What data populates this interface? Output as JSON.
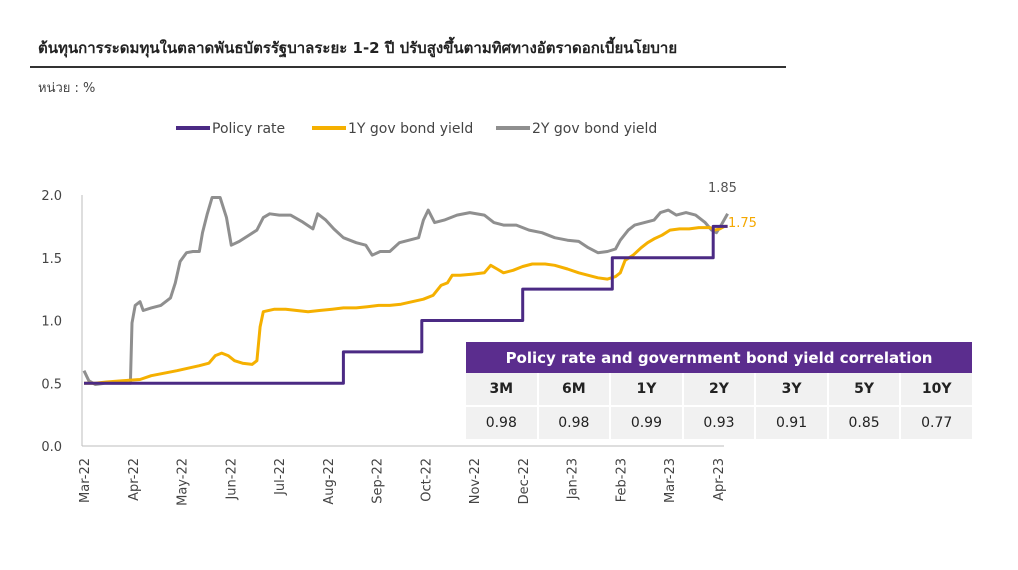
{
  "page": {
    "title": "ต้นทุนการระดมทุนในตลาดพันธบัตรรัฐบาลระยะ 1-2 ปี ปรับสูงขึ้นตามทิศทางอัตราดอกเบี้ยนโยบาย",
    "unit": "หน่วย : %"
  },
  "colors": {
    "policy": "#4b2a84",
    "y1": "#f5b000",
    "y2": "#8f8f8f",
    "table_header": "#5b2d8e",
    "table_cell": "#f1f1f1"
  },
  "chart_data": {
    "type": "line",
    "title": "",
    "x_labels": [
      "Mar-22",
      "Apr-22",
      "May-22",
      "Jun-22",
      "Jul-22",
      "Aug-22",
      "Sep-22",
      "Oct-22",
      "Nov-22",
      "Dec-22",
      "Jan-23",
      "Feb-23",
      "Mar-23",
      "Apr-23"
    ],
    "ylim": [
      0,
      2.0
    ],
    "y_ticks": [
      "0.0",
      "0.5",
      "1.0",
      "1.5",
      "2.0"
    ],
    "grid": false,
    "legend_position": "top",
    "series": [
      {
        "name": "Policy rate",
        "color": "#4b2a84",
        "points": [
          [
            "2022-03-01",
            0.5
          ],
          [
            "2022-08-10",
            0.5
          ],
          [
            "2022-08-10",
            0.75
          ],
          [
            "2022-09-28",
            0.75
          ],
          [
            "2022-09-28",
            1.0
          ],
          [
            "2022-11-30",
            1.0
          ],
          [
            "2022-11-30",
            1.25
          ],
          [
            "2023-01-25",
            1.25
          ],
          [
            "2023-01-25",
            1.5
          ],
          [
            "2023-03-29",
            1.5
          ],
          [
            "2023-03-29",
            1.75
          ],
          [
            "2023-04-07",
            1.75
          ]
        ]
      },
      {
        "name": "1Y gov bond yield",
        "color": "#f5b000",
        "points": [
          [
            "2022-03-01",
            0.5
          ],
          [
            "2022-03-08",
            0.5
          ],
          [
            "2022-03-15",
            0.51
          ],
          [
            "2022-03-25",
            0.52
          ],
          [
            "2022-04-05",
            0.53
          ],
          [
            "2022-04-12",
            0.56
          ],
          [
            "2022-04-20",
            0.58
          ],
          [
            "2022-04-28",
            0.6
          ],
          [
            "2022-05-05",
            0.62
          ],
          [
            "2022-05-12",
            0.64
          ],
          [
            "2022-05-18",
            0.66
          ],
          [
            "2022-05-22",
            0.72
          ],
          [
            "2022-05-26",
            0.74
          ],
          [
            "2022-05-30",
            0.72
          ],
          [
            "2022-06-03",
            0.68
          ],
          [
            "2022-06-08",
            0.66
          ],
          [
            "2022-06-14",
            0.65
          ],
          [
            "2022-06-17",
            0.68
          ],
          [
            "2022-06-19",
            0.95
          ],
          [
            "2022-06-21",
            1.07
          ],
          [
            "2022-06-28",
            1.09
          ],
          [
            "2022-07-05",
            1.09
          ],
          [
            "2022-07-12",
            1.08
          ],
          [
            "2022-07-19",
            1.07
          ],
          [
            "2022-07-26",
            1.08
          ],
          [
            "2022-08-03",
            1.09
          ],
          [
            "2022-08-10",
            1.1
          ],
          [
            "2022-08-18",
            1.1
          ],
          [
            "2022-08-25",
            1.11
          ],
          [
            "2022-09-01",
            1.12
          ],
          [
            "2022-09-08",
            1.12
          ],
          [
            "2022-09-15",
            1.13
          ],
          [
            "2022-09-22",
            1.15
          ],
          [
            "2022-09-29",
            1.17
          ],
          [
            "2022-10-05",
            1.2
          ],
          [
            "2022-10-10",
            1.28
          ],
          [
            "2022-10-14",
            1.3
          ],
          [
            "2022-10-17",
            1.36
          ],
          [
            "2022-10-22",
            1.36
          ],
          [
            "2022-10-30",
            1.37
          ],
          [
            "2022-11-06",
            1.38
          ],
          [
            "2022-11-10",
            1.44
          ],
          [
            "2022-11-14",
            1.41
          ],
          [
            "2022-11-18",
            1.38
          ],
          [
            "2022-11-24",
            1.4
          ],
          [
            "2022-11-30",
            1.43
          ],
          [
            "2022-12-06",
            1.45
          ],
          [
            "2022-12-14",
            1.45
          ],
          [
            "2022-12-20",
            1.44
          ],
          [
            "2022-12-28",
            1.41
          ],
          [
            "2023-01-04",
            1.38
          ],
          [
            "2023-01-10",
            1.36
          ],
          [
            "2023-01-16",
            1.34
          ],
          [
            "2023-01-22",
            1.33
          ],
          [
            "2023-01-27",
            1.35
          ],
          [
            "2023-01-30",
            1.38
          ],
          [
            "2023-02-02",
            1.48
          ],
          [
            "2023-02-07",
            1.52
          ],
          [
            "2023-02-12",
            1.58
          ],
          [
            "2023-02-16",
            1.62
          ],
          [
            "2023-02-20",
            1.65
          ],
          [
            "2023-02-25",
            1.68
          ],
          [
            "2023-03-02",
            1.72
          ],
          [
            "2023-03-08",
            1.73
          ],
          [
            "2023-03-14",
            1.73
          ],
          [
            "2023-03-20",
            1.74
          ],
          [
            "2023-03-27",
            1.74
          ],
          [
            "2023-03-30",
            1.72
          ],
          [
            "2023-04-02",
            1.73
          ],
          [
            "2023-04-05",
            1.75
          ],
          [
            "2023-04-07",
            1.75
          ]
        ]
      },
      {
        "name": "2Y gov bond yield",
        "color": "#8f8f8f",
        "points": [
          [
            "2022-03-01",
            0.6
          ],
          [
            "2022-03-04",
            0.52
          ],
          [
            "2022-03-08",
            0.49
          ],
          [
            "2022-03-14",
            0.5
          ],
          [
            "2022-03-20",
            0.5
          ],
          [
            "2022-03-25",
            0.5
          ],
          [
            "2022-03-30",
            0.5
          ],
          [
            "2022-03-31",
            0.98
          ],
          [
            "2022-04-02",
            1.12
          ],
          [
            "2022-04-05",
            1.15
          ],
          [
            "2022-04-07",
            1.08
          ],
          [
            "2022-04-12",
            1.1
          ],
          [
            "2022-04-18",
            1.12
          ],
          [
            "2022-04-24",
            1.18
          ],
          [
            "2022-04-27",
            1.3
          ],
          [
            "2022-04-30",
            1.47
          ],
          [
            "2022-05-04",
            1.54
          ],
          [
            "2022-05-08",
            1.55
          ],
          [
            "2022-05-12",
            1.55
          ],
          [
            "2022-05-14",
            1.7
          ],
          [
            "2022-05-17",
            1.85
          ],
          [
            "2022-05-20",
            1.98
          ],
          [
            "2022-05-25",
            1.98
          ],
          [
            "2022-05-29",
            1.82
          ],
          [
            "2022-06-01",
            1.6
          ],
          [
            "2022-06-06",
            1.63
          ],
          [
            "2022-06-12",
            1.68
          ],
          [
            "2022-06-17",
            1.72
          ],
          [
            "2022-06-21",
            1.82
          ],
          [
            "2022-06-25",
            1.85
          ],
          [
            "2022-07-01",
            1.84
          ],
          [
            "2022-07-08",
            1.84
          ],
          [
            "2022-07-15",
            1.79
          ],
          [
            "2022-07-22",
            1.73
          ],
          [
            "2022-07-25",
            1.85
          ],
          [
            "2022-07-30",
            1.8
          ],
          [
            "2022-08-04",
            1.73
          ],
          [
            "2022-08-10",
            1.66
          ],
          [
            "2022-08-18",
            1.62
          ],
          [
            "2022-08-24",
            1.6
          ],
          [
            "2022-08-28",
            1.52
          ],
          [
            "2022-09-02",
            1.55
          ],
          [
            "2022-09-08",
            1.55
          ],
          [
            "2022-09-14",
            1.62
          ],
          [
            "2022-09-20",
            1.64
          ],
          [
            "2022-09-26",
            1.66
          ],
          [
            "2022-09-29",
            1.8
          ],
          [
            "2022-10-02",
            1.88
          ],
          [
            "2022-10-06",
            1.78
          ],
          [
            "2022-10-12",
            1.8
          ],
          [
            "2022-10-20",
            1.84
          ],
          [
            "2022-10-28",
            1.86
          ],
          [
            "2022-11-06",
            1.84
          ],
          [
            "2022-11-12",
            1.78
          ],
          [
            "2022-11-18",
            1.76
          ],
          [
            "2022-11-26",
            1.76
          ],
          [
            "2022-12-04",
            1.72
          ],
          [
            "2022-12-12",
            1.7
          ],
          [
            "2022-12-20",
            1.66
          ],
          [
            "2022-12-28",
            1.64
          ],
          [
            "2023-01-04",
            1.63
          ],
          [
            "2023-01-10",
            1.58
          ],
          [
            "2023-01-16",
            1.54
          ],
          [
            "2023-01-22",
            1.55
          ],
          [
            "2023-01-27",
            1.57
          ],
          [
            "2023-01-30",
            1.64
          ],
          [
            "2023-02-04",
            1.72
          ],
          [
            "2023-02-08",
            1.76
          ],
          [
            "2023-02-14",
            1.78
          ],
          [
            "2023-02-20",
            1.8
          ],
          [
            "2023-02-24",
            1.86
          ],
          [
            "2023-03-01",
            1.88
          ],
          [
            "2023-03-06",
            1.84
          ],
          [
            "2023-03-12",
            1.86
          ],
          [
            "2023-03-18",
            1.84
          ],
          [
            "2023-03-24",
            1.78
          ],
          [
            "2023-03-28",
            1.72
          ],
          [
            "2023-03-31",
            1.7
          ],
          [
            "2023-04-03",
            1.76
          ],
          [
            "2023-04-07",
            1.85
          ]
        ]
      }
    ],
    "end_labels": {
      "y1": "1.75",
      "y2": "1.85"
    }
  },
  "correlation_table": {
    "title": "Policy rate and government bond yield correlation",
    "headers": [
      "3M",
      "6M",
      "1Y",
      "2Y",
      "3Y",
      "5Y",
      "10Y"
    ],
    "values": [
      "0.98",
      "0.98",
      "0.99",
      "0.93",
      "0.91",
      "0.85",
      "0.77"
    ]
  }
}
